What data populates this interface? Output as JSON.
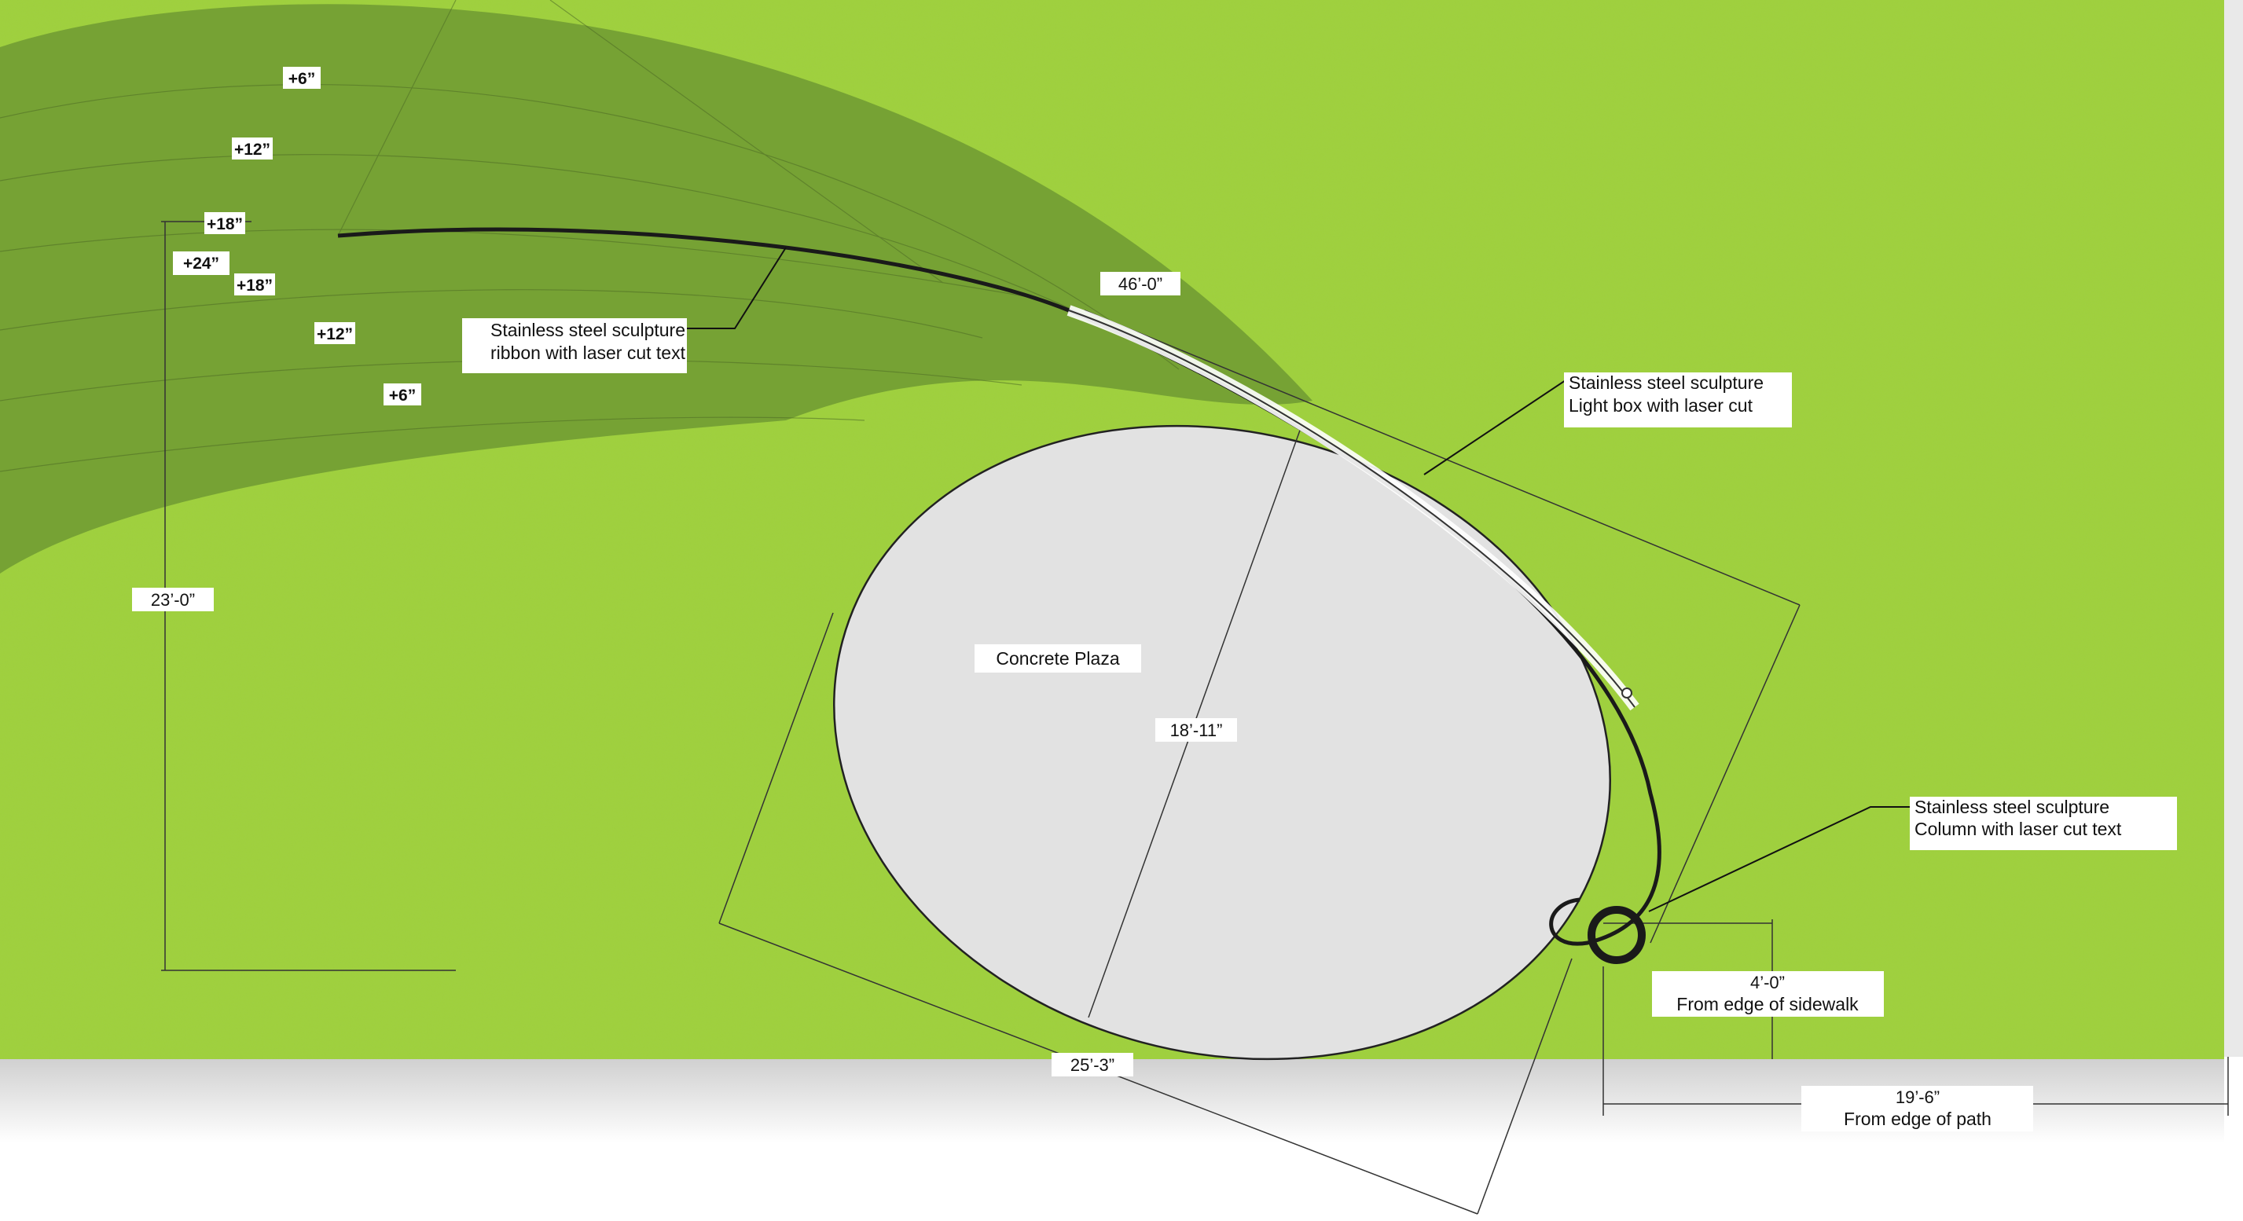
{
  "colors": {
    "grass": "#9fd23a",
    "grass_dark": "#8cc02c",
    "mound": "#6f9a32",
    "plaza": "#e2e2e2",
    "sculpture": "#1a1a1a",
    "line": "#333333"
  },
  "elevations": {
    "upper": [
      "+6”",
      "+12”",
      "+18”"
    ],
    "peak": "+24”",
    "lower": [
      "+18”",
      "+12”",
      "+6”"
    ]
  },
  "dimensions": {
    "ribbon_length": "46’-0”",
    "mound_width": "23’-0”",
    "plaza_short_axis": "18’-11”",
    "plaza_long_axis": "25’-3”",
    "sidewalk_offset": "4’-0”",
    "sidewalk_note": "From edge of sidewalk",
    "path_offset": "19’-6”",
    "path_note": "From edge of path"
  },
  "labels": {
    "ribbon": [
      "Stainless steel sculpture",
      "ribbon with laser cut text"
    ],
    "lightbox": [
      "Stainless steel sculpture",
      "Light box with laser cut"
    ],
    "column": [
      "Stainless steel sculpture",
      "Column with laser cut text"
    ],
    "plaza": "Concrete Plaza"
  }
}
